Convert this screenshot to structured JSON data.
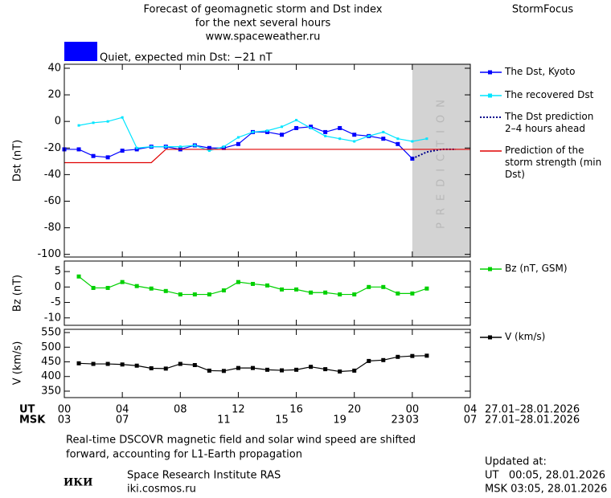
{
  "header": {
    "title_lines": [
      "Forecast of geomagnetic storm and Dst index",
      "for the next several hours",
      "www.spaceweather.ru"
    ],
    "brand": "StormFocus",
    "status_color": "#0000ff",
    "status": "Quiet, expected min Dst: −21 nT"
  },
  "chart_data": [
    {
      "type": "line",
      "ylabel": "Dst (nT)",
      "xlim": [
        0,
        28
      ],
      "ylim": [
        -102,
        43
      ],
      "yticks": [
        40,
        20,
        0,
        -20,
        -40,
        -60,
        -80,
        -100
      ],
      "band": {
        "from": 24,
        "to": 28,
        "label": "PREDICTION",
        "color": "#d3d3d3"
      },
      "series": [
        {
          "name": "The Dst, Kyoto",
          "color": "#0000ff",
          "marker": "square",
          "x": [
            0,
            1,
            2,
            3,
            4,
            5,
            6,
            7,
            8,
            9,
            10,
            11,
            12,
            13,
            14,
            15,
            16,
            17,
            18,
            19,
            20,
            21,
            22,
            23,
            24
          ],
          "values": [
            -21,
            -21,
            -26,
            -27,
            -22,
            -21,
            -19,
            -19,
            -21,
            -18,
            -20,
            -20,
            -17,
            -8,
            -8,
            -10,
            -5,
            -4,
            -8,
            -5,
            -10,
            -11,
            -13,
            -17,
            -28
          ]
        },
        {
          "name": "The recovered Dst",
          "color": "#00e5ff",
          "marker": "small",
          "x": [
            1,
            2,
            3,
            4,
            5,
            6,
            7,
            8,
            9,
            10,
            11,
            12,
            13,
            14,
            15,
            16,
            17,
            18,
            19,
            20,
            21,
            22,
            23,
            24,
            25
          ],
          "values": [
            -3,
            -1,
            0,
            3,
            -20,
            -19,
            -19,
            -19,
            -18,
            -22,
            -19,
            -12,
            -8,
            -7,
            -4,
            1,
            -5,
            -11,
            -13,
            -15,
            -11,
            -8,
            -13,
            -15,
            -13
          ]
        },
        {
          "name": "The Dst prediction 2–4 hours ahead",
          "color": "#00008b",
          "dash": "dotted",
          "x": [
            24,
            25,
            26,
            27
          ],
          "values": [
            -28,
            -23,
            -21,
            -21
          ]
        },
        {
          "name": "Prediction of the storm strength (min Dst)",
          "color": "#e00000",
          "x": [
            0,
            6,
            7,
            28
          ],
          "values": [
            -31,
            -31,
            -21,
            -21
          ]
        }
      ]
    },
    {
      "type": "line",
      "ylabel": "Bz (nT)",
      "xlim": [
        0,
        28
      ],
      "ylim": [
        -12.4,
        8.4
      ],
      "yticks": [
        5,
        0,
        -5,
        -10
      ],
      "series": [
        {
          "name": "Bz (nT, GSM)",
          "color": "#00d000",
          "marker": "square",
          "x": [
            1,
            2,
            3,
            4,
            5,
            6,
            7,
            8,
            9,
            10,
            11,
            12,
            13,
            14,
            15,
            16,
            17,
            18,
            19,
            20,
            21,
            22,
            23,
            24,
            25
          ],
          "values": [
            3.4,
            -0.3,
            -0.3,
            1.6,
            0.3,
            -0.5,
            -1.3,
            -2.4,
            -2.4,
            -2.4,
            -1.1,
            1.6,
            1,
            0.5,
            -0.8,
            -0.8,
            -1.8,
            -1.8,
            -2.4,
            -2.4,
            0,
            0,
            -2.1,
            -2.1,
            -0.5
          ]
        }
      ]
    },
    {
      "type": "line",
      "ylabel": "V (km/s)",
      "xlim": [
        0,
        28
      ],
      "ylim": [
        328,
        561
      ],
      "yticks": [
        550,
        500,
        450,
        400,
        350
      ],
      "x_label": "UT",
      "x2_label": "MSK",
      "xticks": [
        {
          "value": 0,
          "label": "00"
        },
        {
          "value": 4,
          "label": "04"
        },
        {
          "value": 8,
          "label": "08"
        },
        12,
        16,
        20,
        {
          "value": 24,
          "label": "00"
        },
        {
          "value": 28,
          "label": "04"
        }
      ],
      "x2ticks": [
        {
          "value": 0,
          "label": "03"
        },
        {
          "value": 4,
          "label": "07"
        },
        11,
        15,
        19,
        23,
        {
          "value": 24,
          "label": "03"
        },
        {
          "value": 28,
          "label": "07"
        }
      ],
      "date_range_ut": "27.01–28.01.2026",
      "date_range_msk": "27.01–28.01.2026",
      "series": [
        {
          "name": "V (km/s)",
          "color": "#000000",
          "marker": "square",
          "x": [
            1,
            2,
            3,
            4,
            5,
            6,
            7,
            8,
            9,
            10,
            11,
            12,
            13,
            14,
            15,
            16,
            17,
            18,
            19,
            20,
            21,
            22,
            23,
            24,
            25
          ],
          "values": [
            445,
            443,
            443,
            441,
            437,
            428,
            427,
            443,
            439,
            420,
            419,
            429,
            429,
            423,
            421,
            423,
            433,
            425,
            417,
            420,
            453,
            456,
            467,
            470,
            471
          ]
        }
      ]
    }
  ],
  "footer": {
    "note_lines": [
      "Real-time DSCOVR magnetic field and solar wind speed are shifted",
      "forward, accounting for L1-Earth propagation"
    ],
    "logo": "ИКИ",
    "institute": "Space Research Institute RAS",
    "site": "iki.cosmos.ru",
    "updated_label": "Updated at:",
    "updated_ut": "UT   00:05, 28.01.2026",
    "updated_msk": "MSK 03:05, 28.01.2026"
  }
}
